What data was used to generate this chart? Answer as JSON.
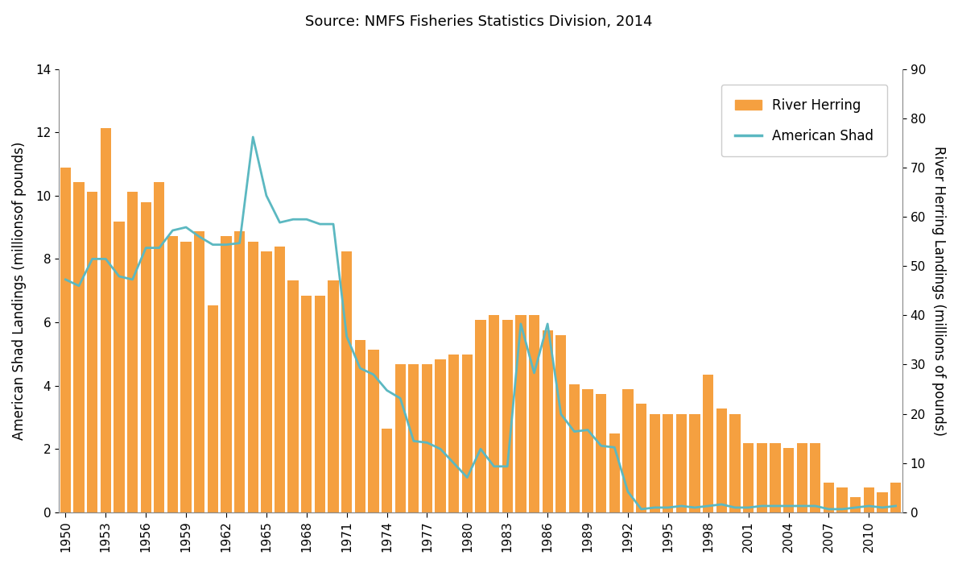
{
  "title": "Source: NMFS Fisheries Statistics Division, 2014",
  "ylabel_left": "American Shad Landings (millionsof pounds)",
  "ylabel_right": "River Herring Landings (millions of pounds)",
  "ylim_left": [
    0,
    14
  ],
  "ylim_right": [
    0,
    90
  ],
  "yticks_left": [
    0,
    2,
    4,
    6,
    8,
    10,
    12,
    14
  ],
  "yticks_right": [
    0,
    10,
    20,
    30,
    40,
    50,
    60,
    70,
    80,
    90
  ],
  "bar_color": "#F5A040",
  "line_color": "#5BB8C1",
  "years": [
    1950,
    1951,
    1952,
    1953,
    1954,
    1955,
    1956,
    1957,
    1958,
    1959,
    1960,
    1961,
    1962,
    1963,
    1964,
    1965,
    1966,
    1967,
    1968,
    1969,
    1970,
    1971,
    1972,
    1973,
    1974,
    1975,
    1976,
    1977,
    1978,
    1979,
    1980,
    1981,
    1982,
    1983,
    1984,
    1985,
    1986,
    1987,
    1988,
    1989,
    1990,
    1991,
    1992,
    1993,
    1994,
    1995,
    1996,
    1997,
    1998,
    1999,
    2000,
    2001,
    2002,
    2003,
    2004,
    2005,
    2006,
    2007,
    2008,
    2009,
    2010,
    2011,
    2012
  ],
  "herring_landings": [
    70,
    67,
    65,
    78,
    59,
    65,
    63,
    67,
    56,
    55,
    57,
    42,
    56,
    57,
    55,
    53,
    54,
    47,
    44,
    44,
    47,
    53,
    35,
    33,
    17,
    30,
    30,
    30,
    31,
    32,
    32,
    39,
    40,
    39,
    40,
    40,
    37,
    36,
    26,
    25,
    24,
    16,
    25,
    22,
    20,
    20,
    20,
    20,
    28,
    21,
    20,
    14,
    14,
    14,
    13,
    14,
    14,
    6,
    5,
    3,
    5,
    4,
    6
  ],
  "shad_landings": [
    7.35,
    7.15,
    8.0,
    8.0,
    7.45,
    7.35,
    8.35,
    8.35,
    8.9,
    9.0,
    8.7,
    8.45,
    8.45,
    8.5,
    11.85,
    10.0,
    9.15,
    9.25,
    9.25,
    9.1,
    9.1,
    5.55,
    4.55,
    4.35,
    3.85,
    3.6,
    2.25,
    2.2,
    2.0,
    1.55,
    1.1,
    2.0,
    1.45,
    1.45,
    5.95,
    4.4,
    5.95,
    3.1,
    2.55,
    2.6,
    2.1,
    2.05,
    0.65,
    0.1,
    0.15,
    0.15,
    0.2,
    0.15,
    0.2,
    0.25,
    0.15,
    0.15,
    0.2,
    0.2,
    0.2,
    0.2,
    0.2,
    0.1,
    0.1,
    0.15,
    0.2,
    0.15,
    0.2
  ],
  "xtick_years": [
    1950,
    1953,
    1956,
    1959,
    1962,
    1965,
    1968,
    1971,
    1974,
    1977,
    1980,
    1983,
    1986,
    1989,
    1992,
    1995,
    1998,
    2001,
    2004,
    2007,
    2010
  ],
  "background_color": "#ffffff",
  "title_fontsize": 13,
  "label_fontsize": 12,
  "tick_fontsize": 11,
  "legend_fontsize": 12
}
